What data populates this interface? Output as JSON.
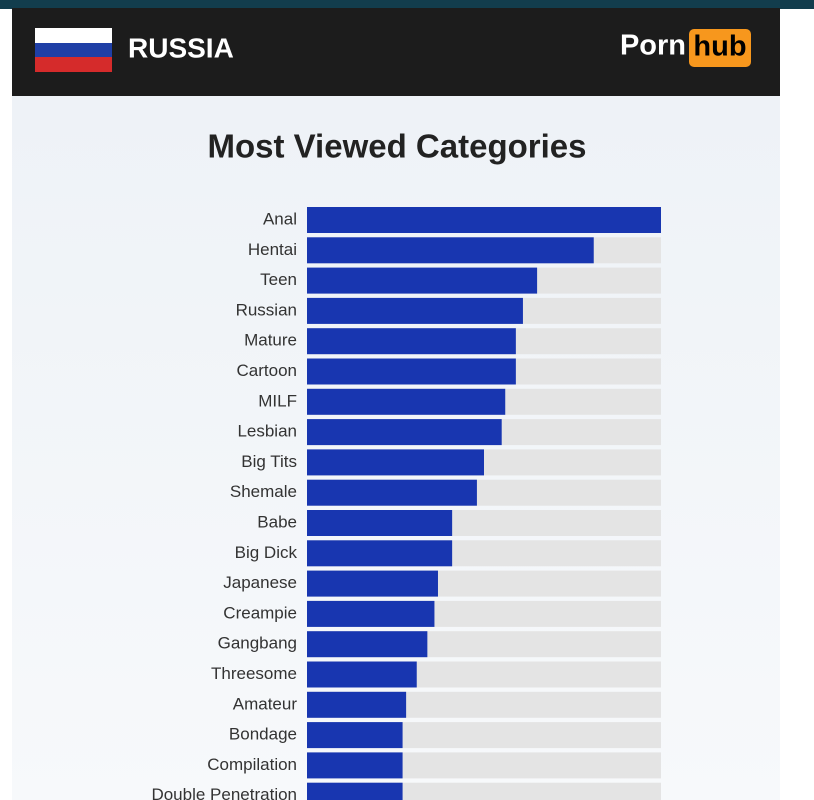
{
  "header": {
    "country": "RUSSIA",
    "logo_left": "Porn",
    "logo_right": "hub"
  },
  "chart_data": {
    "type": "hbar",
    "title": "Most Viewed Categories",
    "categories": [
      "Anal",
      "Hentai",
      "Teen",
      "Russian",
      "Mature",
      "Cartoon",
      "MILF",
      "Lesbian",
      "Big Tits",
      "Shemale",
      "Babe",
      "Big Dick",
      "Japanese",
      "Creampie",
      "Gangbang",
      "Threesome",
      "Amateur",
      "Bondage",
      "Compilation",
      "Double Penetration"
    ],
    "values": [
      100,
      81,
      65,
      61,
      59,
      59,
      56,
      55,
      50,
      48,
      41,
      41,
      37,
      36,
      34,
      31,
      28,
      27,
      27,
      27
    ],
    "color": "#1836b0",
    "xlim": [
      0,
      100
    ]
  }
}
